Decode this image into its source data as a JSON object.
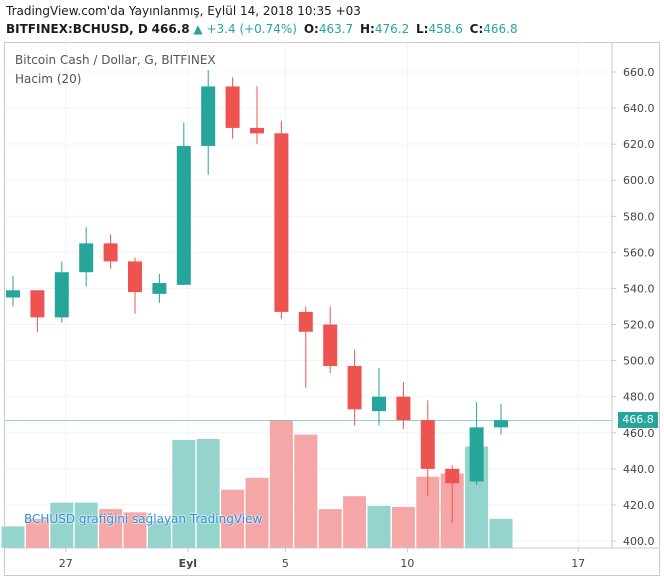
{
  "header": {
    "published": "TradingView.com'da Yayınlanmış, Eylül 14, 2018 10:35 +03",
    "symbol": "BITFINEX:BCHUSD, D",
    "last": "466.8",
    "change": "+3.4 (+0.74%)",
    "o_label": "O:",
    "o_val": "463.7",
    "h_label": "H:",
    "h_val": "476.2",
    "l_label": "L:",
    "l_val": "458.6",
    "c_label": "C:",
    "c_val": "466.8"
  },
  "legend": {
    "title": "Bitcoin Cash / Dollar, G, BITFINEX",
    "volume": "Hacim (20)"
  },
  "watermark": "BCHUSD grafiğini sağlayan TradingView",
  "price_tag": "466.8",
  "colors": {
    "up": "#26a69a",
    "down": "#ef5350",
    "up_vol": "#94d4cd",
    "down_vol": "#f5a6a6"
  },
  "chart_data": {
    "type": "candlestick",
    "y_ticks": [
      400,
      420,
      440,
      460,
      480,
      500,
      520,
      540,
      560,
      580,
      600,
      620,
      640,
      660
    ],
    "ylim": [
      396,
      666
    ],
    "x_ticks": [
      {
        "label": "27",
        "index": 2
      },
      {
        "label": "Eyl",
        "index": 7
      },
      {
        "label": "5",
        "index": 11
      },
      {
        "label": "10",
        "index": 16
      },
      {
        "label": "17",
        "index": 23
      }
    ],
    "candles": [
      {
        "o": 535,
        "h": 547,
        "l": 530,
        "c": 539,
        "vol": 0.2
      },
      {
        "o": 539,
        "h": 539,
        "l": 516,
        "c": 524,
        "vol": 0.27
      },
      {
        "o": 524,
        "h": 555,
        "l": 521,
        "c": 549,
        "vol": 0.42
      },
      {
        "o": 549,
        "h": 574,
        "l": 541,
        "c": 565,
        "vol": 0.42
      },
      {
        "o": 565,
        "h": 570,
        "l": 551,
        "c": 555,
        "vol": 0.36
      },
      {
        "o": 555,
        "h": 557,
        "l": 526,
        "c": 538,
        "vol": 0.33
      },
      {
        "o": 537,
        "h": 548,
        "l": 532,
        "c": 543,
        "vol": 0.25
      },
      {
        "o": 542,
        "h": 632,
        "l": 542,
        "c": 619,
        "vol": 1.0
      },
      {
        "o": 619,
        "h": 661,
        "l": 603,
        "c": 652,
        "vol": 1.01
      },
      {
        "o": 652,
        "h": 657,
        "l": 623,
        "c": 629,
        "vol": 0.54
      },
      {
        "o": 629,
        "h": 652,
        "l": 620,
        "c": 626,
        "vol": 0.65
      },
      {
        "o": 626,
        "h": 633,
        "l": 523,
        "c": 527,
        "vol": 1.18
      },
      {
        "o": 527,
        "h": 530,
        "l": 485,
        "c": 516,
        "vol": 1.05
      },
      {
        "o": 520,
        "h": 530,
        "l": 493,
        "c": 497,
        "vol": 0.36
      },
      {
        "o": 497,
        "h": 506,
        "l": 464,
        "c": 473,
        "vol": 0.48
      },
      {
        "o": 472,
        "h": 496,
        "l": 464,
        "c": 480,
        "vol": 0.39
      },
      {
        "o": 480,
        "h": 488,
        "l": 462,
        "c": 467,
        "vol": 0.38
      },
      {
        "o": 467,
        "h": 478,
        "l": 425,
        "c": 440,
        "vol": 0.66
      },
      {
        "o": 440,
        "h": 442,
        "l": 410,
        "c": 432,
        "vol": 0.69
      },
      {
        "o": 433,
        "h": 477,
        "l": 431,
        "c": 463,
        "vol": 0.94
      },
      {
        "o": 463,
        "h": 476,
        "l": 459,
        "c": 467,
        "vol": 0.27
      }
    ]
  }
}
